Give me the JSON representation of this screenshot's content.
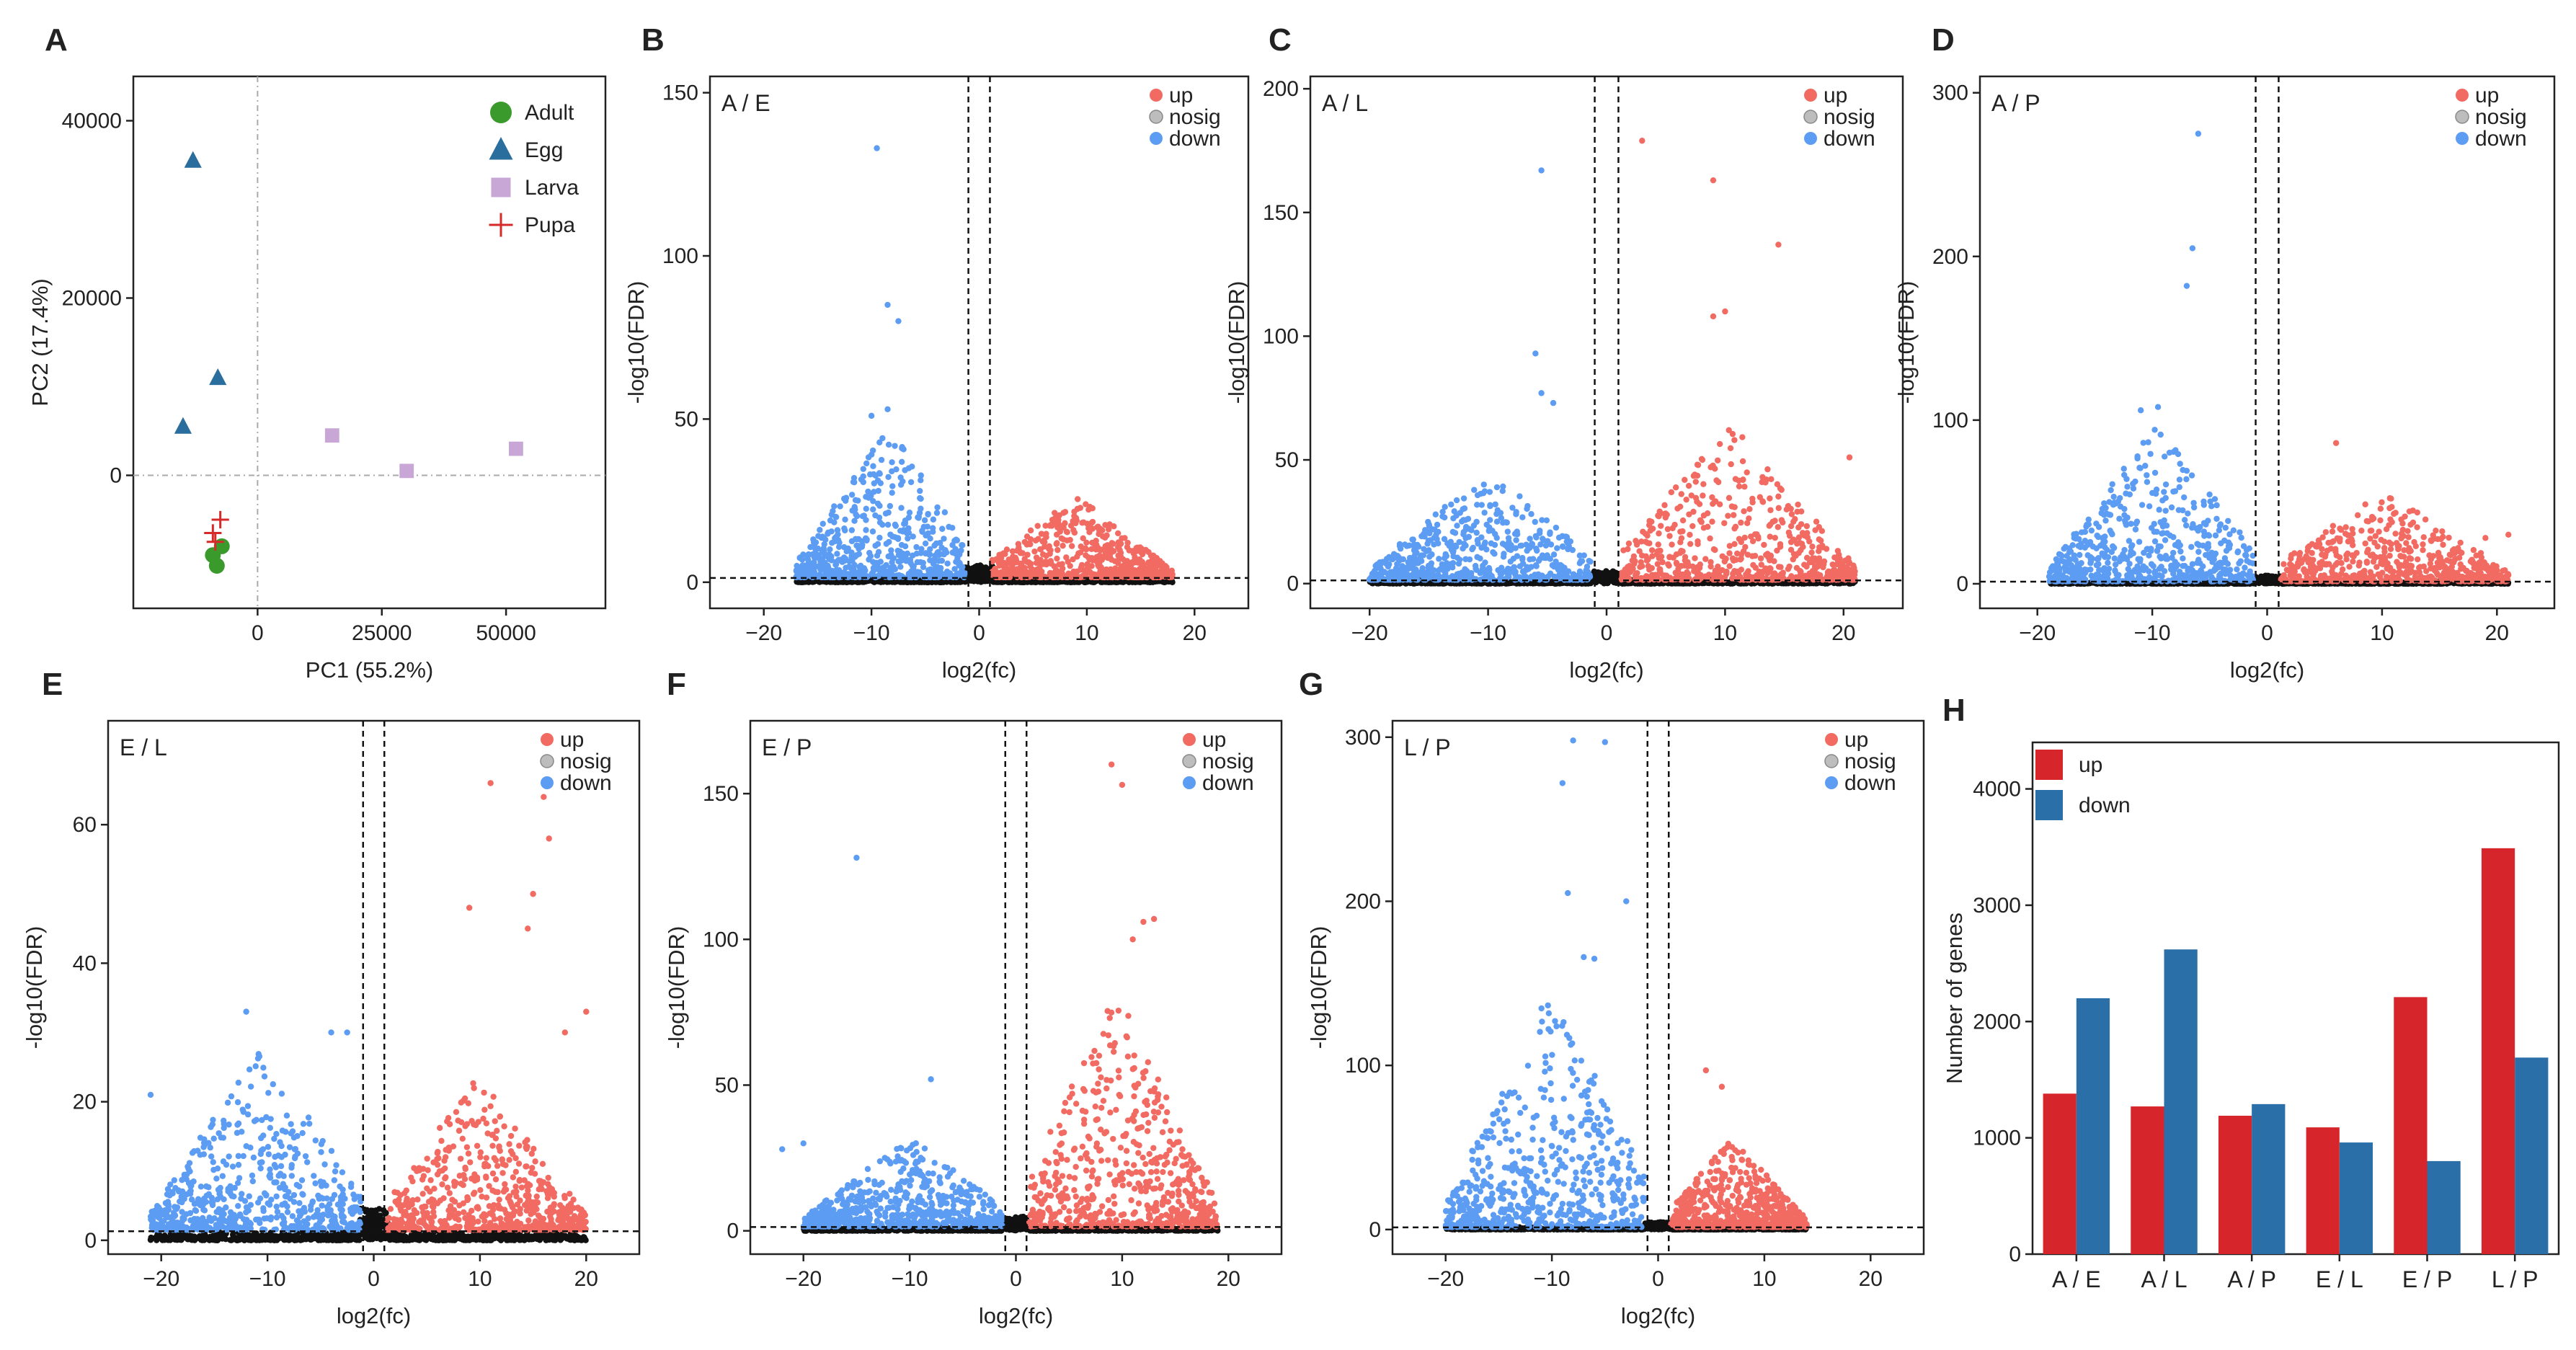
{
  "figure": {
    "pca": {
      "panel_label": "A",
      "xlabel": "PC1  (55.2%)",
      "ylabel": "PC2 (17.4%)",
      "legend": [
        {
          "name": "Adult",
          "color": "#3a9a2c",
          "marker": "circle"
        },
        {
          "name": "Egg",
          "color": "#2a6e9e",
          "marker": "triangle"
        },
        {
          "name": "Larva",
          "color": "#c8a6d6",
          "marker": "square"
        },
        {
          "name": "Pupa",
          "color": "#d62a2a",
          "marker": "plus"
        }
      ]
    },
    "volcano_common": {
      "xlabel": "log2(fc)",
      "ylabel": "-log10(FDR)",
      "legend": [
        "up",
        "nosig",
        "down"
      ],
      "colors": {
        "up": "#f26b63",
        "nosig": "#9a9a9a",
        "down": "#5c9cf2",
        "bg": "#111111"
      }
    },
    "bar": {
      "panel_label": "H",
      "ylabel": "Number of genes",
      "legend": [
        {
          "name": "up",
          "color": "#d7262b"
        },
        {
          "name": "down",
          "color": "#2a6fa8"
        }
      ]
    }
  },
  "chart_data": [
    {
      "id": "A",
      "type": "scatter",
      "title": "",
      "xlabel": "PC1  (55.2%)",
      "ylabel": "PC2 (17.4%)",
      "xlim": [
        -25000,
        70000
      ],
      "ylim": [
        -15000,
        45000
      ],
      "xticks": [
        0,
        25000,
        50000
      ],
      "yticks": [
        0,
        20000,
        40000
      ],
      "series": [
        {
          "name": "Adult",
          "points": [
            [
              -9000,
              -9000
            ],
            [
              -7200,
              -8000
            ],
            [
              -8200,
              -10200
            ]
          ]
        },
        {
          "name": "Egg",
          "points": [
            [
              -13000,
              35500
            ],
            [
              -8000,
              11000
            ],
            [
              -15000,
              5500
            ]
          ]
        },
        {
          "name": "Larva",
          "points": [
            [
              15000,
              4500
            ],
            [
              30000,
              500
            ],
            [
              52000,
              3000
            ]
          ]
        },
        {
          "name": "Pupa",
          "points": [
            [
              -8500,
              -7500
            ],
            [
              -7500,
              -5000
            ],
            [
              -9000,
              -6500
            ]
          ]
        }
      ]
    },
    {
      "id": "B",
      "type": "scatter",
      "title": "A / E",
      "xlim": [
        -25,
        25
      ],
      "ylim": [
        -8,
        155
      ],
      "xticks": [
        -20,
        -10,
        0,
        10,
        20
      ],
      "yticks": [
        0,
        50,
        100,
        150
      ],
      "threshold_x": [
        -1,
        1
      ],
      "threshold_y": 1.3,
      "up_range": [
        1,
        18
      ],
      "down_range": [
        -17,
        -1
      ],
      "up_max": 28,
      "down_max": 52,
      "down_outliers": [
        [
          -9.5,
          133
        ],
        [
          -8.5,
          85
        ],
        [
          -7.5,
          80
        ],
        [
          -8.5,
          53
        ],
        [
          -10,
          51
        ]
      ],
      "up_outliers": []
    },
    {
      "id": "C",
      "type": "scatter",
      "title": "A / L",
      "xlim": [
        -25,
        25
      ],
      "ylim": [
        -10,
        205
      ],
      "xticks": [
        -20,
        -10,
        0,
        10,
        20
      ],
      "yticks": [
        0,
        50,
        100,
        150,
        200
      ],
      "threshold_x": [
        -1,
        1
      ],
      "threshold_y": 1.3,
      "up_range": [
        1,
        21
      ],
      "down_range": [
        -20,
        -1
      ],
      "up_max": 70,
      "down_max": 50,
      "down_outliers": [
        [
          -5.5,
          167
        ],
        [
          -6,
          93
        ],
        [
          -5.5,
          77
        ],
        [
          -4.5,
          73
        ]
      ],
      "up_outliers": [
        [
          3,
          179
        ],
        [
          9,
          163
        ],
        [
          14.5,
          137
        ],
        [
          10,
          110
        ],
        [
          9,
          108
        ],
        [
          20.5,
          51
        ]
      ]
    },
    {
      "id": "D",
      "type": "scatter",
      "title": "A / P",
      "xlim": [
        -25,
        25
      ],
      "ylim": [
        -15,
        310
      ],
      "xticks": [
        -20,
        -10,
        0,
        10,
        20
      ],
      "yticks": [
        0,
        100,
        200,
        300
      ],
      "threshold_x": [
        -1,
        1
      ],
      "threshold_y": 1.3,
      "up_range": [
        1,
        21
      ],
      "down_range": [
        -19,
        -1
      ],
      "up_max": 65,
      "down_max": 108,
      "down_outliers": [
        [
          -6,
          275
        ],
        [
          -6.5,
          205
        ],
        [
          -7,
          182
        ],
        [
          -9.5,
          108
        ],
        [
          -11,
          106
        ]
      ],
      "up_outliers": [
        [
          6,
          86
        ],
        [
          19,
          28
        ],
        [
          21,
          30
        ]
      ]
    },
    {
      "id": "E",
      "type": "scatter",
      "title": "E / L",
      "xlim": [
        -25,
        25
      ],
      "ylim": [
        -2,
        75
      ],
      "xticks": [
        -20,
        -10,
        0,
        10,
        20
      ],
      "yticks": [
        0,
        20,
        40,
        60
      ],
      "threshold_x": [
        -1,
        1
      ],
      "threshold_y": 1.3,
      "up_range": [
        1,
        20
      ],
      "down_range": [
        -21,
        -1
      ],
      "up_max": 25,
      "down_max": 30,
      "down_outliers": [
        [
          -21,
          21
        ],
        [
          -12,
          33
        ],
        [
          -4,
          30
        ],
        [
          -2.5,
          30
        ]
      ],
      "up_outliers": [
        [
          11,
          66
        ],
        [
          16,
          64
        ],
        [
          16.5,
          58
        ],
        [
          15,
          50
        ],
        [
          9,
          48
        ],
        [
          14.5,
          45
        ],
        [
          20,
          33
        ],
        [
          18,
          30
        ]
      ]
    },
    {
      "id": "F",
      "type": "scatter",
      "title": "E / P",
      "xlim": [
        -25,
        25
      ],
      "ylim": [
        -8,
        175
      ],
      "xticks": [
        -20,
        -10,
        0,
        10,
        20
      ],
      "yticks": [
        0,
        50,
        100,
        150
      ],
      "threshold_x": [
        -1,
        1
      ],
      "threshold_y": 1.3,
      "up_range": [
        1,
        19
      ],
      "down_range": [
        -20,
        -1
      ],
      "up_max": 90,
      "down_max": 35,
      "down_outliers": [
        [
          -15,
          128
        ],
        [
          -8,
          52
        ],
        [
          -20,
          30
        ],
        [
          -22,
          28
        ]
      ],
      "up_outliers": [
        [
          9,
          160
        ],
        [
          10,
          153
        ],
        [
          12,
          106
        ],
        [
          13,
          107
        ],
        [
          11,
          100
        ]
      ]
    },
    {
      "id": "G",
      "type": "scatter",
      "title": "L / P",
      "xlim": [
        -25,
        25
      ],
      "ylim": [
        -15,
        310
      ],
      "xticks": [
        -20,
        -10,
        0,
        10,
        20
      ],
      "yticks": [
        0,
        100,
        200,
        300
      ],
      "threshold_x": [
        -1,
        1
      ],
      "threshold_y": 1.3,
      "up_range": [
        1,
        14
      ],
      "down_range": [
        -20,
        -1
      ],
      "up_max": 60,
      "down_max": 165,
      "down_outliers": [
        [
          -8,
          298
        ],
        [
          -5,
          297
        ],
        [
          -9,
          272
        ],
        [
          -8.5,
          205
        ],
        [
          -3,
          200
        ],
        [
          -7,
          166
        ],
        [
          -6,
          165
        ]
      ],
      "up_outliers": [
        [
          4.5,
          97
        ],
        [
          6,
          87
        ]
      ]
    },
    {
      "id": "H",
      "type": "bar",
      "title": "",
      "xlabel": "",
      "ylabel": "Number of genes",
      "categories": [
        "A / E",
        "A / L",
        "A / P",
        "E / L",
        "E / P",
        "L / P"
      ],
      "ylim": [
        0,
        4400
      ],
      "yticks": [
        0,
        1000,
        2000,
        3000,
        4000
      ],
      "series": [
        {
          "name": "up",
          "values": [
            1380,
            1270,
            1190,
            1090,
            2210,
            3490
          ]
        },
        {
          "name": "down",
          "values": [
            2200,
            2620,
            1290,
            960,
            800,
            1690
          ]
        }
      ]
    }
  ]
}
